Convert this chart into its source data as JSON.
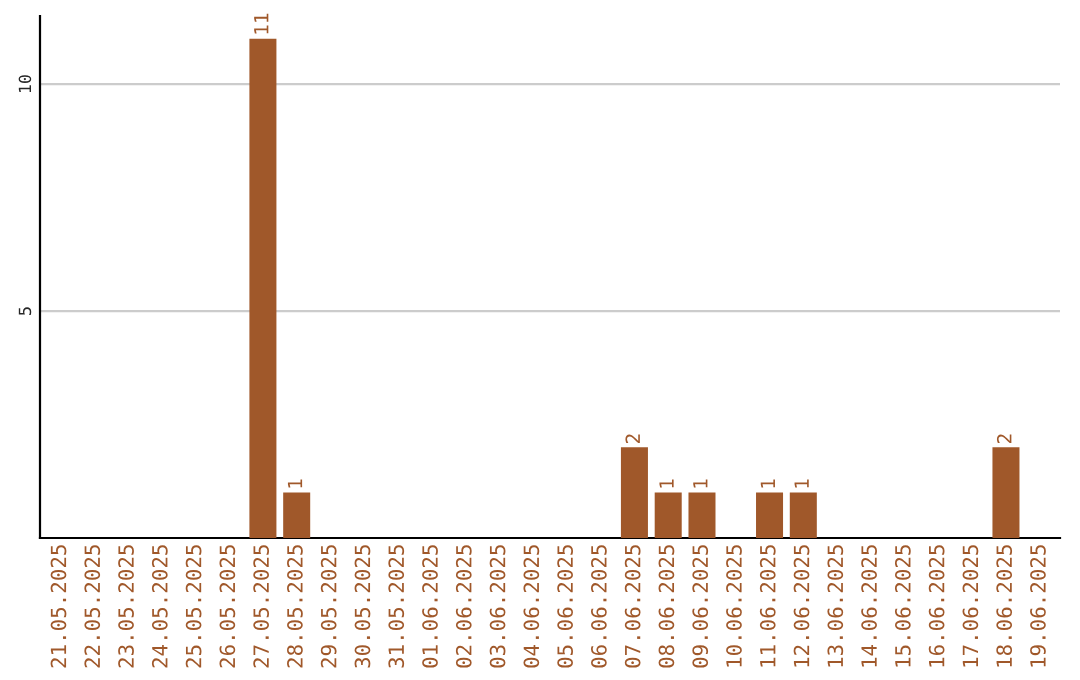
{
  "chart_data": {
    "type": "bar",
    "categories": [
      "21.05.2025",
      "22.05.2025",
      "23.05.2025",
      "24.05.2025",
      "25.05.2025",
      "26.05.2025",
      "27.05.2025",
      "28.05.2025",
      "29.05.2025",
      "30.05.2025",
      "31.05.2025",
      "01.06.2025",
      "02.06.2025",
      "03.06.2025",
      "04.06.2025",
      "05.06.2025",
      "06.06.2025",
      "07.06.2025",
      "08.06.2025",
      "09.06.2025",
      "10.06.2025",
      "11.06.2025",
      "12.06.2025",
      "13.06.2025",
      "14.06.2025",
      "15.06.2025",
      "16.06.2025",
      "17.06.2025",
      "18.06.2025",
      "19.06.2025"
    ],
    "values": [
      0,
      0,
      0,
      0,
      0,
      0,
      11,
      1,
      0,
      0,
      0,
      0,
      0,
      0,
      0,
      0,
      0,
      2,
      1,
      1,
      0,
      1,
      1,
      0,
      0,
      0,
      0,
      0,
      2,
      0
    ],
    "value_labels": [
      null,
      null,
      null,
      null,
      null,
      null,
      "11",
      "1",
      null,
      null,
      null,
      null,
      null,
      null,
      null,
      null,
      null,
      "2",
      "1",
      "1",
      null,
      "1",
      "1",
      null,
      null,
      null,
      null,
      null,
      "2",
      null
    ],
    "color": "#a0582a",
    "ylim": [
      0,
      11.5
    ],
    "yticks": [
      5,
      10
    ],
    "grid": "y"
  }
}
